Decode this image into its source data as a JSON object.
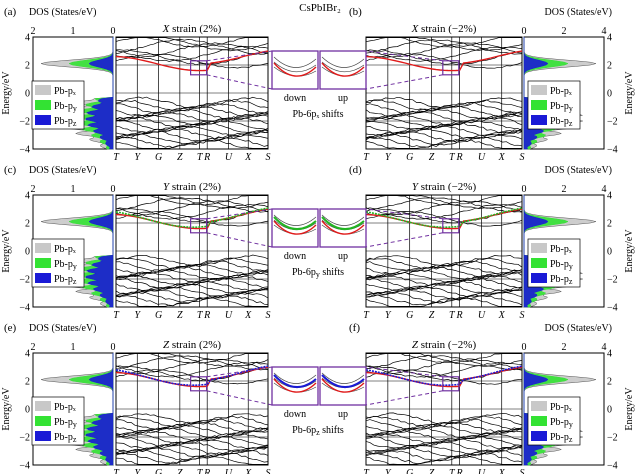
{
  "figure": {
    "title": "CsPbIBr₂",
    "k_labels": [
      "T",
      "Y",
      "G",
      "Z",
      "T",
      "R",
      "U",
      "X",
      "S"
    ],
    "energy_label": "Energy/eV",
    "energy_ticks": [
      "4",
      "2",
      "0",
      "−2",
      "−4"
    ],
    "dos_label": "DOS (States/eV)",
    "dos_ticks_left": [
      "2",
      "1",
      "0"
    ],
    "dos_ticks_right": [
      "0",
      "2",
      "4"
    ],
    "zoom_labels": {
      "left": "down",
      "right": "up"
    },
    "legend": [
      {
        "text": "Pb-pₓ",
        "color": "#c8c8c8"
      },
      {
        "text": "Pb-p_y",
        "color": "#33e233"
      },
      {
        "text": "Pb-p_z",
        "color": "#1a1ad6"
      }
    ]
  },
  "panels": [
    {
      "id": "a",
      "letter": "(a)",
      "strain": "X strain (2%)",
      "side": "left",
      "highlight": "#e01a1a"
    },
    {
      "id": "b",
      "letter": "(b)",
      "strain": "X strain (−2%)",
      "side": "right",
      "highlight": "#e01a1a"
    },
    {
      "id": "c",
      "letter": "(c)",
      "strain": "Y strain (2%)",
      "side": "left",
      "highlight": "#22b522"
    },
    {
      "id": "d",
      "letter": "(d)",
      "strain": "Y strain (−2%)",
      "side": "right",
      "highlight": "#22b522"
    },
    {
      "id": "e",
      "letter": "(e)",
      "strain": "Z strain (2%)",
      "side": "left",
      "highlight": "#1a1ad6"
    },
    {
      "id": "f",
      "letter": "(f)",
      "strain": "Z strain (−2%)",
      "side": "right",
      "highlight": "#1a1ad6"
    }
  ],
  "shift_notes": [
    {
      "row": 0,
      "text": "Pb-6pₓ shifts",
      "color": "#e01a1a"
    },
    {
      "row": 1,
      "text": "Pb-6p_y shifts",
      "color": "#22b522"
    },
    {
      "row": 2,
      "text": "Pb-6p_z shifts",
      "color": "#1a1ad6"
    }
  ],
  "colors": {
    "band": "#000000",
    "cbm_red": "#e01a1a",
    "frame": "#000000",
    "zoom_box": "#7030a0",
    "dash": "#7030a0"
  }
}
